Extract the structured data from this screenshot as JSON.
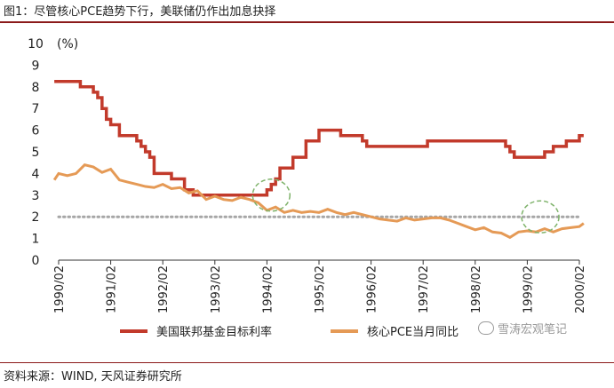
{
  "header": {
    "title": "图1：尽管核心PCE趋势下行，美联储仍作出加息抉择"
  },
  "footer": {
    "source": "资料来源：WIND, 天风证券研究所",
    "watermark": "雪涛宏观笔记"
  },
  "colors": {
    "fed": "#c23a2b",
    "pce": "#e59a56",
    "ref": "#a6a6a6",
    "circle": "#7fb36b",
    "rule": "#8b1a1a"
  },
  "chart_data": {
    "type": "line",
    "title": "",
    "xlabel": "",
    "ylabel": "(%)",
    "ylim": [
      0,
      10
    ],
    "yticks": [
      "0",
      "1",
      "2",
      "3",
      "4",
      "5",
      "6",
      "7",
      "8",
      "9",
      "10"
    ],
    "xticks": [
      "1990/02",
      "1991/02",
      "1992/02",
      "1993/02",
      "1994/02",
      "1995/02",
      "1996/02",
      "1997/02",
      "1998/02",
      "1999/02",
      "2000/02"
    ],
    "legend_position": "bottom",
    "reference_line": {
      "y": 2,
      "style": "dotted"
    },
    "highlights": [
      {
        "shape": "dashed-circle",
        "center": [
          "1994/03",
          3.0
        ]
      },
      {
        "shape": "dashed-circle",
        "center": [
          "1999/05",
          2.0
        ]
      }
    ],
    "series": [
      {
        "name": "美国联邦基金目标利率",
        "step": true,
        "points": [
          [
            "1990/01",
            8.25
          ],
          [
            "1990/07",
            8.0
          ],
          [
            "1990/10",
            7.75
          ],
          [
            "1990/11",
            7.5
          ],
          [
            "1990/12",
            7.0
          ],
          [
            "1991/01",
            6.5
          ],
          [
            "1991/02",
            6.25
          ],
          [
            "1991/04",
            5.75
          ],
          [
            "1991/08",
            5.5
          ],
          [
            "1991/09",
            5.25
          ],
          [
            "1991/10",
            5.0
          ],
          [
            "1991/11",
            4.75
          ],
          [
            "1991/12",
            4.0
          ],
          [
            "1992/04",
            3.75
          ],
          [
            "1992/07",
            3.25
          ],
          [
            "1992/09",
            3.0
          ],
          [
            "1994/02",
            3.25
          ],
          [
            "1994/03",
            3.5
          ],
          [
            "1994/04",
            3.75
          ],
          [
            "1994/05",
            4.25
          ],
          [
            "1994/08",
            4.75
          ],
          [
            "1994/11",
            5.5
          ],
          [
            "1995/02",
            6.0
          ],
          [
            "1995/07",
            5.75
          ],
          [
            "1995/12",
            5.5
          ],
          [
            "1996/01",
            5.25
          ],
          [
            "1997/03",
            5.5
          ],
          [
            "1998/09",
            5.25
          ],
          [
            "1998/10",
            5.0
          ],
          [
            "1998/11",
            4.75
          ],
          [
            "1999/06",
            5.0
          ],
          [
            "1999/08",
            5.25
          ],
          [
            "1999/11",
            5.5
          ],
          [
            "2000/02",
            5.75
          ],
          [
            "2000/03",
            5.75
          ]
        ]
      },
      {
        "name": "核心PCE当月同比",
        "step": false,
        "points": [
          [
            "1990/01",
            3.7
          ],
          [
            "1990/02",
            4.0
          ],
          [
            "1990/04",
            3.9
          ],
          [
            "1990/06",
            4.0
          ],
          [
            "1990/08",
            4.4
          ],
          [
            "1990/10",
            4.3
          ],
          [
            "1990/12",
            4.05
          ],
          [
            "1991/02",
            4.2
          ],
          [
            "1991/04",
            3.7
          ],
          [
            "1991/06",
            3.6
          ],
          [
            "1991/08",
            3.5
          ],
          [
            "1991/10",
            3.4
          ],
          [
            "1991/12",
            3.35
          ],
          [
            "1992/02",
            3.5
          ],
          [
            "1992/04",
            3.3
          ],
          [
            "1992/06",
            3.35
          ],
          [
            "1992/08",
            3.1
          ],
          [
            "1992/10",
            3.2
          ],
          [
            "1992/12",
            2.8
          ],
          [
            "1993/02",
            2.95
          ],
          [
            "1993/04",
            2.8
          ],
          [
            "1993/06",
            2.75
          ],
          [
            "1993/08",
            2.9
          ],
          [
            "1993/10",
            2.8
          ],
          [
            "1993/12",
            2.65
          ],
          [
            "1994/02",
            2.3
          ],
          [
            "1994/04",
            2.45
          ],
          [
            "1994/06",
            2.2
          ],
          [
            "1994/08",
            2.3
          ],
          [
            "1994/10",
            2.2
          ],
          [
            "1994/12",
            2.25
          ],
          [
            "1995/02",
            2.2
          ],
          [
            "1995/04",
            2.35
          ],
          [
            "1995/06",
            2.2
          ],
          [
            "1995/08",
            2.1
          ],
          [
            "1995/10",
            2.2
          ],
          [
            "1995/12",
            2.1
          ],
          [
            "1996/02",
            2.0
          ],
          [
            "1996/04",
            1.9
          ],
          [
            "1996/06",
            1.85
          ],
          [
            "1996/08",
            1.8
          ],
          [
            "1996/10",
            1.95
          ],
          [
            "1996/12",
            1.85
          ],
          [
            "1997/02",
            1.9
          ],
          [
            "1997/04",
            1.95
          ],
          [
            "1997/06",
            1.95
          ],
          [
            "1997/08",
            1.85
          ],
          [
            "1997/10",
            1.7
          ],
          [
            "1997/12",
            1.55
          ],
          [
            "1998/02",
            1.4
          ],
          [
            "1998/04",
            1.5
          ],
          [
            "1998/06",
            1.3
          ],
          [
            "1998/08",
            1.25
          ],
          [
            "1998/10",
            1.05
          ],
          [
            "1998/12",
            1.3
          ],
          [
            "1999/02",
            1.35
          ],
          [
            "1999/04",
            1.3
          ],
          [
            "1999/06",
            1.45
          ],
          [
            "1999/08",
            1.3
          ],
          [
            "1999/10",
            1.45
          ],
          [
            "1999/12",
            1.5
          ],
          [
            "2000/02",
            1.55
          ],
          [
            "2000/03",
            1.7
          ]
        ]
      }
    ]
  }
}
